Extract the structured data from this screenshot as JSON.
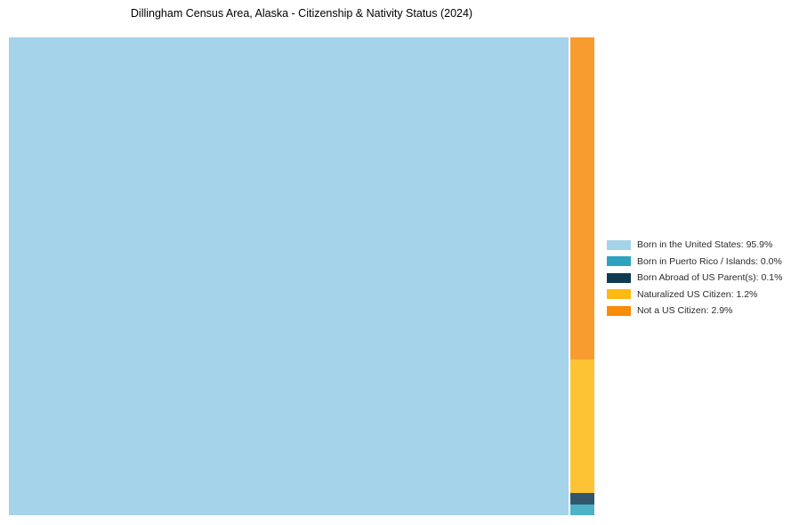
{
  "title": "Dillingham Census Area, Alaska - Citizenship & Nativity Status (2024)",
  "chart_data": {
    "type": "treemap",
    "title": "Dillingham Census Area, Alaska - Citizenship & Nativity Status (2024)",
    "value_unit": "percent",
    "legend_position": "right",
    "layout_note": "Single large tile at left; remaining categories stacked top-to-bottom (largest first) in a narrow right column",
    "series": [
      {
        "name": "Born in the United States",
        "value": 95.9,
        "color": "#A5D3EA",
        "legend_label": "Born in the United States: 95.9%"
      },
      {
        "name": "Born in Puerto Rico / Islands",
        "value": 0.0,
        "color": "#2EA3BE",
        "legend_label": "Born in Puerto Rico / Islands: 0.0%"
      },
      {
        "name": "Born Abroad of US Parent(s)",
        "value": 0.1,
        "color": "#0E3A52",
        "legend_label": "Born Abroad of US Parent(s): 0.1%"
      },
      {
        "name": "Naturalized US Citizen",
        "value": 1.2,
        "color": "#FEB912",
        "legend_label": "Naturalized US Citizen: 1.2%"
      },
      {
        "name": "Not a US Citizen",
        "value": 2.9,
        "color": "#F88B0A",
        "legend_label": "Not a US Citizen: 2.9%"
      }
    ]
  }
}
